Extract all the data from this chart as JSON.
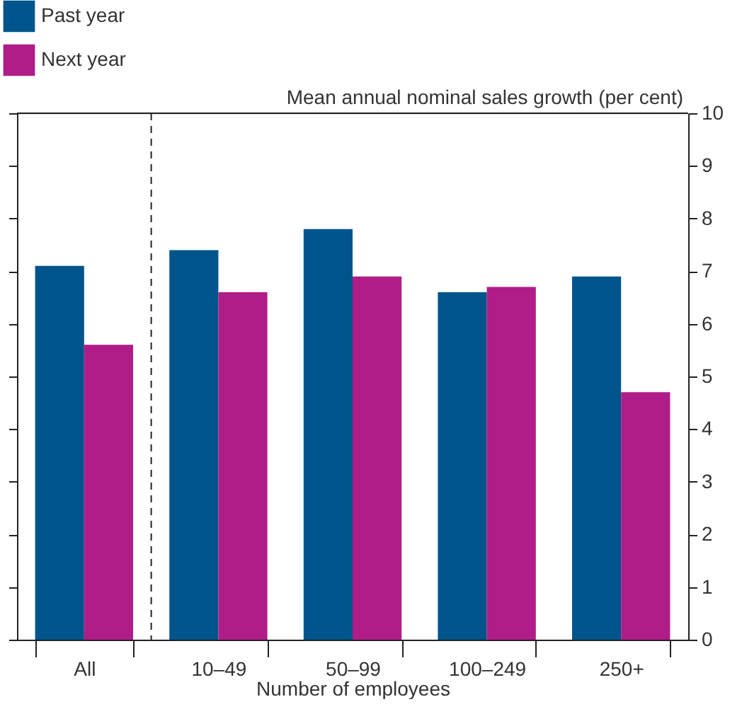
{
  "chart_data": {
    "type": "bar",
    "categories": [
      "All",
      "10–49",
      "50–99",
      "100–249",
      "250+"
    ],
    "series": [
      {
        "name": "Past year",
        "color": "#00548c",
        "values": [
          7.1,
          7.4,
          7.8,
          6.6,
          6.9
        ]
      },
      {
        "name": "Next year",
        "color": "#b01c88",
        "values": [
          5.6,
          6.6,
          6.9,
          6.7,
          4.7
        ]
      }
    ],
    "xlabel": "Number of employees",
    "ylabel": "Mean annual nominal sales growth (per cent)",
    "ylim": [
      0,
      10
    ],
    "yticks": [
      0,
      1,
      2,
      3,
      4,
      5,
      6,
      7,
      8,
      9,
      10
    ],
    "grid": false,
    "legend": "top left"
  }
}
